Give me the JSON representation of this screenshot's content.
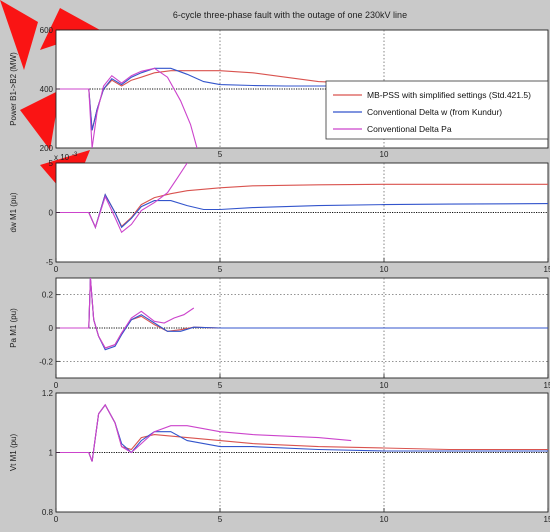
{
  "figure": {
    "title": "6-cycle three-phase fault with the outage of one 230kV line",
    "background": "#c9c9c9",
    "axes_background": "#ffffff",
    "watermark_color": "#ff0000"
  },
  "legend": {
    "entries": [
      {
        "label": "MB-PSS with simplified settings (Std.421.5)",
        "color": "#d9534f"
      },
      {
        "label": "Conventional Delta w (from Kundur)",
        "color": "#3355cc"
      },
      {
        "label": "Conventional Delta Pa",
        "color": "#cc44cc"
      }
    ]
  },
  "chart_data": [
    {
      "type": "line",
      "ylabel": "Power B1->B2 (MW)",
      "xlim": [
        0,
        15
      ],
      "ylim": [
        200,
        600
      ],
      "xticks": [],
      "yticks": [
        "200",
        "400",
        "600"
      ],
      "xtick_labels_text": [
        "5",
        "10"
      ],
      "reference_line": 400,
      "series": [
        {
          "name": "MB-PSS with simplified settings (Std.421.5)",
          "color": "#d9534f",
          "x": [
            0,
            1.0,
            1.1,
            1.25,
            1.45,
            1.7,
            2.0,
            2.3,
            2.6,
            3.0,
            3.5,
            4,
            5,
            6,
            7,
            8,
            9
          ],
          "y": [
            400,
            400,
            260,
            330,
            400,
            430,
            410,
            430,
            440,
            455,
            462,
            462,
            462,
            455,
            440,
            425,
            420
          ]
        },
        {
          "name": "Conventional Delta w (from Kundur)",
          "color": "#3355cc",
          "x": [
            0,
            1.0,
            1.1,
            1.25,
            1.45,
            1.7,
            2.0,
            2.3,
            2.6,
            3.0,
            3.5,
            4,
            4.5,
            5,
            6,
            7,
            8,
            9
          ],
          "y": [
            400,
            400,
            260,
            330,
            400,
            435,
            415,
            440,
            455,
            470,
            470,
            450,
            425,
            415,
            412,
            410,
            410,
            410
          ]
        },
        {
          "name": "Conventional Delta Pa",
          "color": "#cc44cc",
          "x": [
            0,
            1.0,
            1.1,
            1.25,
            1.45,
            1.7,
            2.0,
            2.3,
            2.6,
            3.0,
            3.4,
            3.8,
            4.1,
            4.3
          ],
          "y": [
            400,
            400,
            200,
            320,
            410,
            445,
            420,
            445,
            460,
            470,
            440,
            360,
            280,
            200
          ]
        }
      ]
    },
    {
      "type": "line",
      "ylabel": "dw M1 (pu)",
      "exponent_label": "x 10",
      "exponent_power": "-3",
      "xlim": [
        0,
        15
      ],
      "ylim": [
        -5,
        5
      ],
      "yticks": [
        "-5",
        "0",
        "5"
      ],
      "xticks": [
        "0",
        "5",
        "10",
        "15"
      ],
      "reference_line": 0,
      "series": [
        {
          "name": "MB-PSS with simplified settings (Std.421.5)",
          "color": "#d9534f",
          "x": [
            0,
            1.0,
            1.2,
            1.5,
            1.8,
            2.0,
            2.3,
            2.6,
            3.0,
            3.5,
            4,
            5,
            6,
            8,
            10,
            12,
            15
          ],
          "y": [
            0,
            0,
            -1.5,
            1.8,
            0,
            -1.4,
            -0.5,
            0.8,
            1.5,
            1.9,
            2.2,
            2.5,
            2.7,
            2.8,
            2.85,
            2.85,
            2.85
          ]
        },
        {
          "name": "Conventional Delta w (from Kundur)",
          "color": "#3355cc",
          "x": [
            0,
            1.0,
            1.2,
            1.5,
            1.8,
            2.0,
            2.3,
            2.6,
            3.0,
            3.5,
            4,
            4.5,
            5,
            6,
            8,
            10,
            12,
            15
          ],
          "y": [
            0,
            0,
            -1.5,
            1.8,
            0,
            -1.5,
            -0.6,
            0.6,
            1.2,
            1.2,
            0.7,
            0.3,
            0.3,
            0.5,
            0.7,
            0.8,
            0.85,
            0.9
          ]
        },
        {
          "name": "Conventional Delta Pa",
          "color": "#cc44cc",
          "x": [
            0,
            1.0,
            1.2,
            1.5,
            1.8,
            2.0,
            2.3,
            2.6,
            3.0,
            3.4,
            3.7,
            4.0
          ],
          "y": [
            0,
            0,
            -1.5,
            1.6,
            -0.5,
            -2.0,
            -1.2,
            0.2,
            1.0,
            2.0,
            3.5,
            5.0
          ]
        }
      ]
    },
    {
      "type": "line",
      "ylabel": "Pa M1 (pu)",
      "xlim": [
        0,
        15
      ],
      "ylim": [
        -0.3,
        0.3
      ],
      "yticks": [
        "-0.2",
        "0",
        "0.2"
      ],
      "xticks": [
        "0",
        "5",
        "10",
        "15"
      ],
      "gridlines": [
        -0.2,
        0.2
      ],
      "reference_line": 0,
      "series": [
        {
          "name": "MB-PSS with simplified settings (Std.421.5)",
          "color": "#d9534f",
          "x": [
            0,
            1.0,
            1.05,
            1.15,
            1.3,
            1.5,
            1.8,
            2.0,
            2.3,
            2.6,
            3.0,
            3.4,
            3.8,
            4.2,
            5,
            15
          ],
          "y": [
            0,
            0,
            0.3,
            0.05,
            -0.05,
            -0.12,
            -0.1,
            -0.03,
            0.05,
            0.07,
            0.02,
            -0.02,
            -0.01,
            0.005,
            0,
            0
          ]
        },
        {
          "name": "Conventional Delta w (from Kundur)",
          "color": "#3355cc",
          "x": [
            0,
            1.0,
            1.05,
            1.15,
            1.3,
            1.5,
            1.8,
            2.0,
            2.3,
            2.6,
            3.0,
            3.4,
            3.8,
            4.2,
            5,
            15
          ],
          "y": [
            0,
            0,
            0.3,
            0.05,
            -0.05,
            -0.13,
            -0.11,
            -0.04,
            0.05,
            0.08,
            0.03,
            -0.02,
            -0.02,
            0.005,
            0,
            0
          ]
        },
        {
          "name": "Conventional Delta Pa",
          "color": "#cc44cc",
          "x": [
            0,
            1.0,
            1.05,
            1.15,
            1.3,
            1.5,
            1.8,
            2.0,
            2.3,
            2.6,
            3.0,
            3.3,
            3.6,
            3.9,
            4.2
          ],
          "y": [
            0,
            0,
            0.3,
            0.05,
            -0.05,
            -0.12,
            -0.1,
            -0.03,
            0.06,
            0.1,
            0.04,
            0.03,
            0.06,
            0.08,
            0.12
          ]
        }
      ]
    },
    {
      "type": "line",
      "ylabel": "Vt M1 (pu)",
      "xlim": [
        0,
        15
      ],
      "ylim": [
        0.8,
        1.2
      ],
      "yticks": [
        "0.8",
        "1",
        "1.2"
      ],
      "xticks": [
        "0",
        "5",
        "10",
        "15"
      ],
      "reference_line": 1,
      "series": [
        {
          "name": "MB-PSS with simplified settings (Std.421.5)",
          "color": "#d9534f",
          "x": [
            0,
            1.0,
            1.1,
            1.3,
            1.5,
            1.8,
            2.0,
            2.3,
            2.6,
            3.0,
            4,
            5,
            6,
            8,
            10,
            12,
            15
          ],
          "y": [
            1,
            1,
            0.97,
            1.13,
            1.16,
            1.1,
            1.02,
            1.01,
            1.05,
            1.06,
            1.05,
            1.04,
            1.03,
            1.02,
            1.015,
            1.01,
            1.01
          ]
        },
        {
          "name": "Conventional Delta w (from Kundur)",
          "color": "#3355cc",
          "x": [
            0,
            1.0,
            1.1,
            1.3,
            1.5,
            1.8,
            2.0,
            2.3,
            2.6,
            3.0,
            3.5,
            4,
            5,
            6,
            8,
            10,
            12,
            15
          ],
          "y": [
            1,
            1,
            0.97,
            1.13,
            1.16,
            1.1,
            1.03,
            1.0,
            1.04,
            1.07,
            1.07,
            1.04,
            1.02,
            1.02,
            1.01,
            1.005,
            1.005,
            1.005
          ]
        },
        {
          "name": "Conventional Delta Pa",
          "color": "#cc44cc",
          "x": [
            0,
            1.0,
            1.1,
            1.3,
            1.5,
            1.8,
            2.0,
            2.3,
            2.6,
            3.0,
            3.5,
            4.0,
            4.5,
            5.0,
            6.0,
            8.0,
            9.0
          ],
          "y": [
            1,
            1,
            0.97,
            1.13,
            1.16,
            1.1,
            1.02,
            1.0,
            1.03,
            1.07,
            1.09,
            1.09,
            1.08,
            1.07,
            1.06,
            1.05,
            1.04
          ]
        }
      ]
    }
  ]
}
